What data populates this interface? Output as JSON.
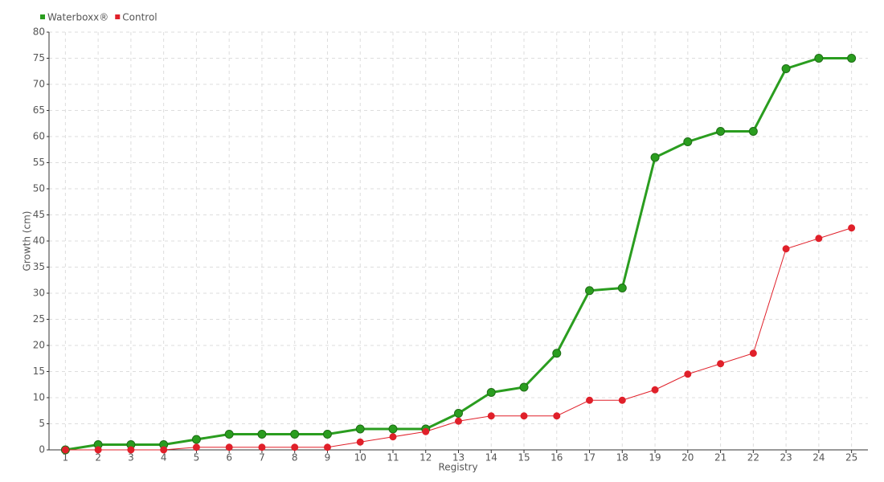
{
  "chart_data": {
    "type": "line",
    "xlabel": "Registry",
    "ylabel": "Growth (cm)",
    "categories": [
      "1",
      "2",
      "3",
      "4",
      "5",
      "6",
      "7",
      "8",
      "9",
      "10",
      "11",
      "12",
      "13",
      "14",
      "15",
      "16",
      "17",
      "18",
      "19",
      "20",
      "21",
      "22",
      "23",
      "24",
      "25"
    ],
    "series": [
      {
        "name": "Waterboxx®",
        "color": "#2a9d1f",
        "values": [
          0,
          1,
          1,
          1,
          2,
          3,
          3,
          3,
          3,
          4,
          4,
          4,
          7,
          11,
          12,
          18.5,
          30.5,
          31,
          56,
          59,
          61,
          61,
          73,
          75,
          75
        ]
      },
      {
        "name": "Control",
        "color": "#e0202a",
        "values": [
          0,
          0,
          0,
          0,
          0.5,
          0.5,
          0.5,
          0.5,
          0.5,
          1.5,
          2.5,
          3.5,
          5.5,
          6.5,
          6.5,
          6.5,
          9.5,
          9.5,
          11.5,
          14.5,
          16.5,
          18.5,
          38.5,
          40.5,
          42.5
        ]
      }
    ],
    "ylim": [
      0,
      80
    ],
    "yticks": [
      0,
      5,
      10,
      15,
      20,
      25,
      30,
      35,
      40,
      45,
      50,
      55,
      60,
      65,
      70,
      75,
      80
    ],
    "grid": true,
    "legend": "top-left"
  }
}
